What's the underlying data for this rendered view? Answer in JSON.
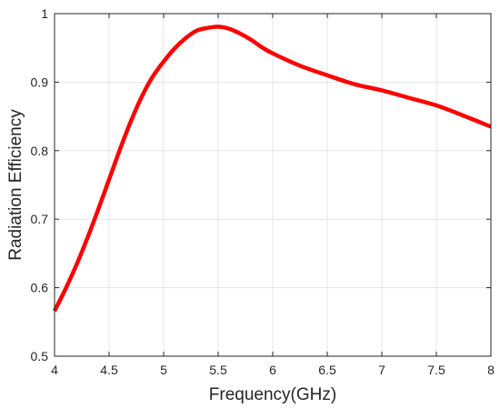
{
  "chart_data": {
    "type": "line",
    "title": "",
    "xlabel": "Frequency(GHz)",
    "ylabel": "Radiation Efficiency",
    "xlim": [
      4,
      8
    ],
    "ylim": [
      0.5,
      1
    ],
    "grid": true,
    "xticks": [
      "4",
      "4.5",
      "5",
      "5.5",
      "6",
      "6.5",
      "7",
      "7.5",
      "8"
    ],
    "yticks": [
      "0.5",
      "0.6",
      "0.7",
      "0.8",
      "0.9",
      "1"
    ],
    "series": [
      {
        "color": "#ff0000",
        "x": [
          4.0,
          4.1,
          4.2,
          4.3,
          4.4,
          4.5,
          4.6,
          4.7,
          4.8,
          4.9,
          5.0,
          5.1,
          5.2,
          5.3,
          5.4,
          5.5,
          5.6,
          5.7,
          5.8,
          5.9,
          6.0,
          6.25,
          6.5,
          6.75,
          7.0,
          7.25,
          7.5,
          7.75,
          8.0
        ],
        "y": [
          0.566,
          0.598,
          0.633,
          0.672,
          0.714,
          0.758,
          0.802,
          0.843,
          0.879,
          0.908,
          0.93,
          0.949,
          0.964,
          0.975,
          0.979,
          0.981,
          0.978,
          0.971,
          0.962,
          0.951,
          0.942,
          0.924,
          0.91,
          0.897,
          0.888,
          0.877,
          0.866,
          0.851,
          0.835
        ]
      }
    ]
  }
}
